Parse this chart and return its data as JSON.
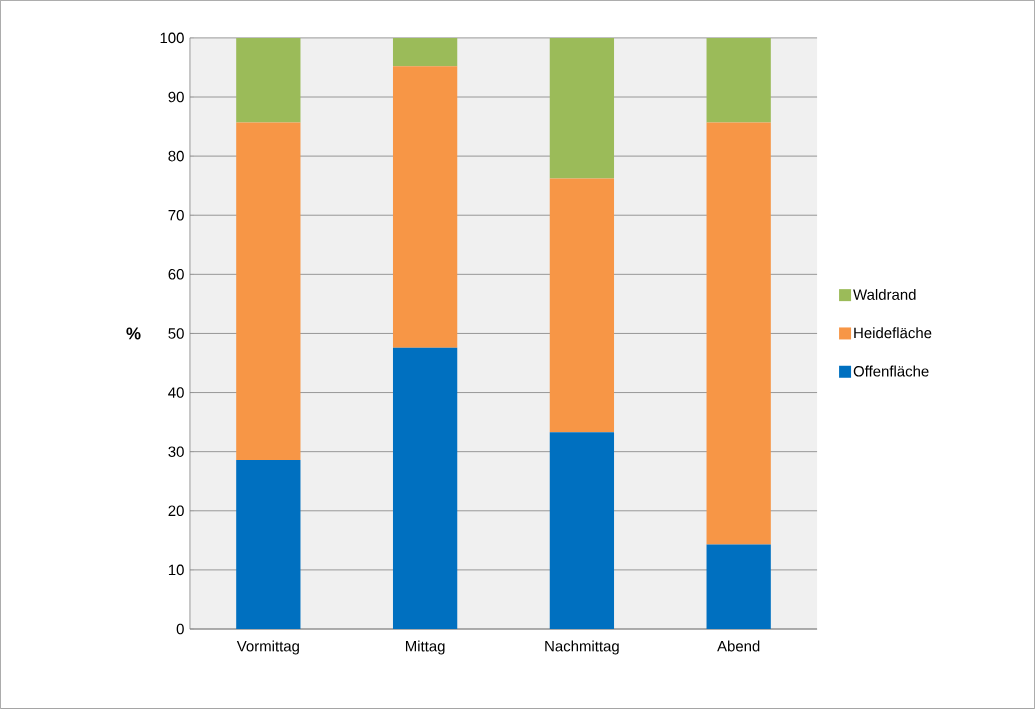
{
  "chart_data": {
    "type": "bar",
    "stacked": true,
    "ylabel": "%",
    "categories": [
      "Vormittag",
      "Mittag",
      "Nachmittag",
      "Abend"
    ],
    "series": [
      {
        "name": "Offenfläche",
        "color": "#0070c0",
        "values": [
          28.6,
          47.6,
          33.3,
          14.3
        ]
      },
      {
        "name": "Heidefläche",
        "color": "#f79646",
        "values": [
          57.1,
          47.6,
          42.9,
          71.4
        ]
      },
      {
        "name": "Waldrand",
        "color": "#9bbb59",
        "values": [
          14.3,
          4.8,
          23.8,
          14.3
        ]
      }
    ],
    "ylim": [
      0,
      100
    ],
    "yticks": [
      0,
      10,
      20,
      30,
      40,
      50,
      60,
      70,
      80,
      90,
      100
    ],
    "grid": "y",
    "legend": "right"
  }
}
